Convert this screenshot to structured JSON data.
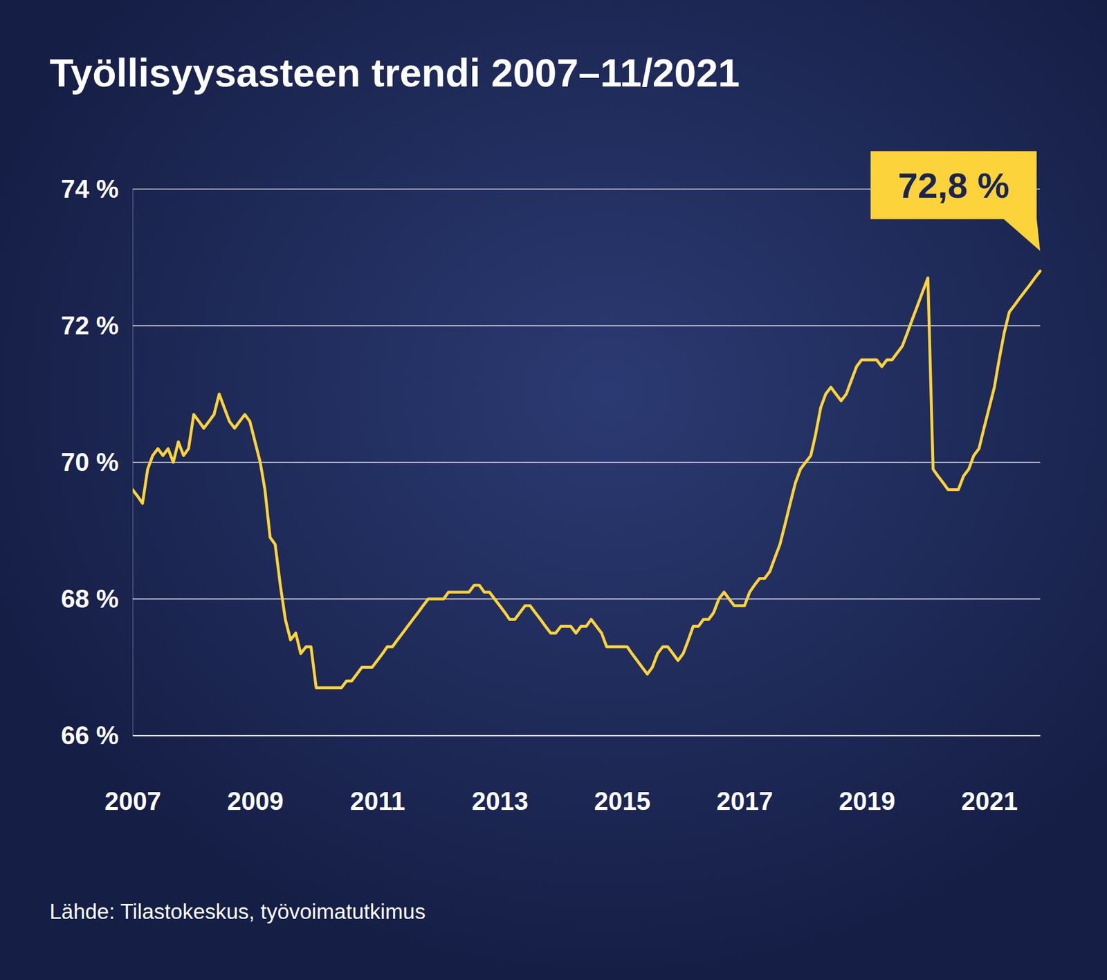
{
  "chart_data": {
    "type": "line",
    "title": "Työllisyysasteen trendi 2007–11/2021",
    "source": "Lähde: Tilastokeskus, työvoimatutkimus",
    "color": "#fdd33b",
    "grid": true,
    "x": [
      "2007-01",
      "2007-02",
      "2007-03",
      "2007-04",
      "2007-05",
      "2007-06",
      "2007-07",
      "2007-08",
      "2007-09",
      "2007-10",
      "2007-11",
      "2007-12",
      "2008-01",
      "2008-02",
      "2008-03",
      "2008-04",
      "2008-05",
      "2008-06",
      "2008-07",
      "2008-08",
      "2008-09",
      "2008-10",
      "2008-11",
      "2008-12",
      "2009-01",
      "2009-02",
      "2009-03",
      "2009-04",
      "2009-05",
      "2009-06",
      "2009-07",
      "2009-08",
      "2009-09",
      "2009-10",
      "2009-11",
      "2009-12",
      "2010-01",
      "2010-02",
      "2010-03",
      "2010-04",
      "2010-05",
      "2010-06",
      "2010-07",
      "2010-08",
      "2010-09",
      "2010-10",
      "2010-11",
      "2010-12",
      "2011-01",
      "2011-02",
      "2011-03",
      "2011-04",
      "2011-05",
      "2011-06",
      "2011-07",
      "2011-08",
      "2011-09",
      "2011-10",
      "2011-11",
      "2011-12",
      "2012-01",
      "2012-02",
      "2012-03",
      "2012-04",
      "2012-05",
      "2012-06",
      "2012-07",
      "2012-08",
      "2012-09",
      "2012-10",
      "2012-11",
      "2012-12",
      "2013-01",
      "2013-02",
      "2013-03",
      "2013-04",
      "2013-05",
      "2013-06",
      "2013-07",
      "2013-08",
      "2013-09",
      "2013-10",
      "2013-11",
      "2013-12",
      "2014-01",
      "2014-02",
      "2014-03",
      "2014-04",
      "2014-05",
      "2014-06",
      "2014-07",
      "2014-08",
      "2014-09",
      "2014-10",
      "2014-11",
      "2014-12",
      "2015-01",
      "2015-02",
      "2015-03",
      "2015-04",
      "2015-05",
      "2015-06",
      "2015-07",
      "2015-08",
      "2015-09",
      "2015-10",
      "2015-11",
      "2015-12",
      "2016-01",
      "2016-02",
      "2016-03",
      "2016-04",
      "2016-05",
      "2016-06",
      "2016-07",
      "2016-08",
      "2016-09",
      "2016-10",
      "2016-11",
      "2016-12",
      "2017-01",
      "2017-02",
      "2017-03",
      "2017-04",
      "2017-05",
      "2017-06",
      "2017-07",
      "2017-08",
      "2017-09",
      "2017-10",
      "2017-11",
      "2017-12",
      "2018-01",
      "2018-02",
      "2018-03",
      "2018-04",
      "2018-05",
      "2018-06",
      "2018-07",
      "2018-08",
      "2018-09",
      "2018-10",
      "2018-11",
      "2018-12",
      "2019-01",
      "2019-02",
      "2019-03",
      "2019-04",
      "2019-05",
      "2019-06",
      "2019-07",
      "2019-08",
      "2019-09",
      "2019-10",
      "2019-11",
      "2019-12",
      "2020-01",
      "2020-02",
      "2020-03",
      "2020-04",
      "2020-05",
      "2020-06",
      "2020-07",
      "2020-08",
      "2020-09",
      "2020-10",
      "2020-11",
      "2020-12",
      "2021-01",
      "2021-02",
      "2021-03",
      "2021-04",
      "2021-05",
      "2021-06",
      "2021-07",
      "2021-08",
      "2021-09",
      "2021-10",
      "2021-11"
    ],
    "values": [
      69.6,
      69.5,
      69.4,
      69.9,
      70.1,
      70.2,
      70.1,
      70.2,
      70.0,
      70.3,
      70.1,
      70.2,
      70.7,
      70.6,
      70.5,
      70.6,
      70.7,
      71.0,
      70.8,
      70.6,
      70.5,
      70.6,
      70.7,
      70.6,
      70.3,
      70.0,
      69.6,
      68.9,
      68.8,
      68.2,
      67.7,
      67.4,
      67.5,
      67.2,
      67.3,
      67.3,
      66.7,
      66.7,
      66.7,
      66.7,
      66.7,
      66.7,
      66.8,
      66.8,
      66.9,
      67.0,
      67.0,
      67.0,
      67.1,
      67.2,
      67.3,
      67.3,
      67.4,
      67.5,
      67.6,
      67.7,
      67.8,
      67.9,
      68.0,
      68.0,
      68.0,
      68.0,
      68.1,
      68.1,
      68.1,
      68.1,
      68.1,
      68.2,
      68.2,
      68.1,
      68.1,
      68.0,
      67.9,
      67.8,
      67.7,
      67.7,
      67.8,
      67.9,
      67.9,
      67.8,
      67.7,
      67.6,
      67.5,
      67.5,
      67.6,
      67.6,
      67.6,
      67.5,
      67.6,
      67.6,
      67.7,
      67.6,
      67.5,
      67.3,
      67.3,
      67.3,
      67.3,
      67.3,
      67.2,
      67.1,
      67.0,
      66.9,
      67.0,
      67.2,
      67.3,
      67.3,
      67.2,
      67.1,
      67.2,
      67.4,
      67.6,
      67.6,
      67.7,
      67.7,
      67.8,
      68.0,
      68.1,
      68.0,
      67.9,
      67.9,
      67.9,
      68.1,
      68.2,
      68.3,
      68.3,
      68.4,
      68.6,
      68.8,
      69.1,
      69.4,
      69.7,
      69.9,
      70.0,
      70.1,
      70.4,
      70.8,
      71.0,
      71.1,
      71.0,
      70.9,
      71.0,
      71.2,
      71.4,
      71.5,
      71.5,
      71.5,
      71.5,
      71.4,
      71.5,
      71.5,
      71.6,
      71.7,
      71.9,
      72.1,
      72.3,
      72.5,
      72.7,
      69.9,
      69.8,
      69.7,
      69.6,
      69.6,
      69.6,
      69.8,
      69.9,
      70.1,
      70.2,
      70.5,
      70.8,
      71.1,
      71.5,
      71.9,
      72.2,
      72.3,
      72.4,
      72.5,
      72.6,
      72.7,
      72.8
    ],
    "xlim": [
      "2007-01",
      "2021-11"
    ],
    "xticks": [
      {
        "value": "2007-01",
        "label": "2007"
      },
      {
        "value": "2009-01",
        "label": "2009"
      },
      {
        "value": "2011-01",
        "label": "2011"
      },
      {
        "value": "2013-01",
        "label": "2013"
      },
      {
        "value": "2015-01",
        "label": "2015"
      },
      {
        "value": "2017-01",
        "label": "2017"
      },
      {
        "value": "2019-01",
        "label": "2019"
      },
      {
        "value": "2021-01",
        "label": "2021"
      }
    ],
    "ylim": [
      66,
      74
    ],
    "yticks": [
      {
        "value": 66,
        "label": "66 %"
      },
      {
        "value": 68,
        "label": "68 %"
      },
      {
        "value": 70,
        "label": "70 %"
      },
      {
        "value": 72,
        "label": "72 %"
      },
      {
        "value": 74,
        "label": "74 %"
      }
    ],
    "annotations": [
      {
        "text": "72,8 %",
        "x": "2021-11",
        "y": 72.8
      }
    ]
  }
}
